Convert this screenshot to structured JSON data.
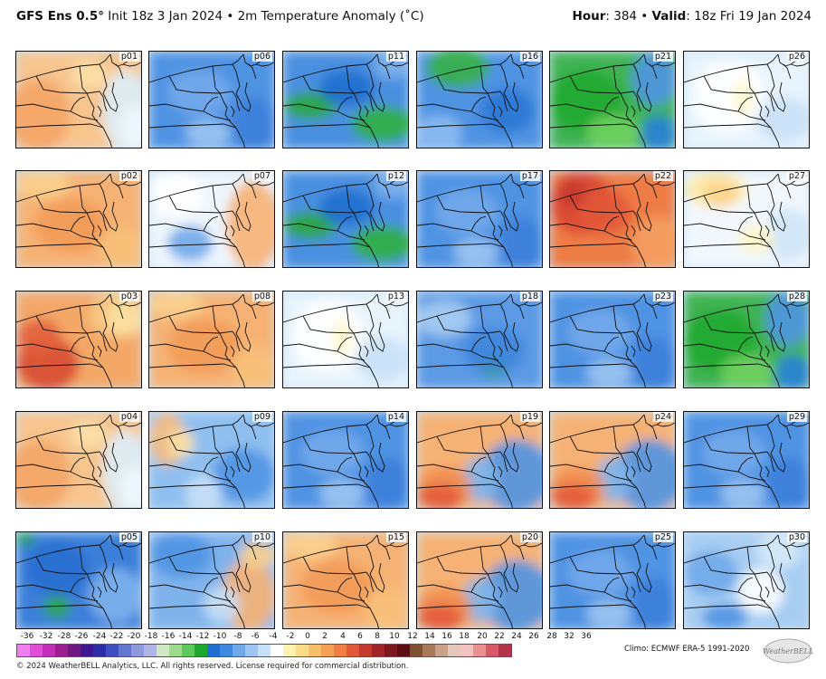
{
  "header": {
    "model": "GFS Ens 0.5",
    "degree": "°",
    "init": " Init 18z 3 Jan 2024 • 2m Temperature Anomaly (˚C)",
    "hour_label": "Hour",
    "hour_value": ": 384 • ",
    "valid_label": "Valid",
    "valid_value": ": 18z Fri 19 Jan 2024"
  },
  "panels": [
    {
      "label": "p01",
      "theme": "orange-west-light-east"
    },
    {
      "label": "p06",
      "theme": "blue"
    },
    {
      "label": "p11",
      "theme": "blue-green"
    },
    {
      "label": "p16",
      "theme": "blue-green-north"
    },
    {
      "label": "p21",
      "theme": "green"
    },
    {
      "label": "p26",
      "theme": "light"
    },
    {
      "label": "p02",
      "theme": "orange"
    },
    {
      "label": "p07",
      "theme": "light-orange-east"
    },
    {
      "label": "p12",
      "theme": "blue-green"
    },
    {
      "label": "p17",
      "theme": "blue"
    },
    {
      "label": "p22",
      "theme": "red"
    },
    {
      "label": "p27",
      "theme": "light-yellow"
    },
    {
      "label": "p03",
      "theme": "red-south"
    },
    {
      "label": "p08",
      "theme": "orange"
    },
    {
      "label": "p13",
      "theme": "light"
    },
    {
      "label": "p18",
      "theme": "blue-green-south"
    },
    {
      "label": "p23",
      "theme": "blue"
    },
    {
      "label": "p28",
      "theme": "green"
    },
    {
      "label": "p04",
      "theme": "orange-west-light-east"
    },
    {
      "label": "p09",
      "theme": "blue-orange-west"
    },
    {
      "label": "p14",
      "theme": "blue"
    },
    {
      "label": "p19",
      "theme": "orange-blue"
    },
    {
      "label": "p24",
      "theme": "orange-blue"
    },
    {
      "label": "p29",
      "theme": "blue"
    },
    {
      "label": "p05",
      "theme": "deep-blue"
    },
    {
      "label": "p10",
      "theme": "blue-orange-east"
    },
    {
      "label": "p15",
      "theme": "orange"
    },
    {
      "label": "p20",
      "theme": "orange-blue"
    },
    {
      "label": "p25",
      "theme": "blue"
    },
    {
      "label": "p30",
      "theme": "light-blue"
    }
  ],
  "colorbar": {
    "ticks": [
      "-36",
      "-32",
      "-28",
      "-26",
      "-24",
      "-22",
      "-20",
      "-18",
      "-16",
      "-14",
      "-12",
      "-10",
      "-8",
      "-6",
      "-4",
      "-2",
      "0",
      "2",
      "4",
      "6",
      "8",
      "10",
      "12",
      "14",
      "16",
      "18",
      "20",
      "22",
      "24",
      "26",
      "28",
      "32",
      "36"
    ],
    "colors": [
      "#f07ef0",
      "#e04fd8",
      "#c42fb9",
      "#9b1f8f",
      "#6e1a82",
      "#3d1890",
      "#2b2ea8",
      "#3f4fc0",
      "#6677d0",
      "#8f98db",
      "#b0b5e6",
      "#cfe8c2",
      "#9fdb8c",
      "#5cc85a",
      "#1ea82e",
      "#1f6fd0",
      "#3f8ae0",
      "#6fa9ea",
      "#9cc6f1",
      "#c8e0f7",
      "#ffffff",
      "#fff2b0",
      "#fbdc86",
      "#f8be6a",
      "#f59f57",
      "#ef7d44",
      "#e2583a",
      "#c53a2e",
      "#a12528",
      "#7c1820",
      "#5b0f14",
      "#7e5030",
      "#a8785a",
      "#c8a28a",
      "#e3c7bb",
      "#f3c3c3",
      "#ea9090",
      "#d85a6a",
      "#b4324a"
    ]
  },
  "footer": {
    "climo": "Climo: ECMWF ERA-5 1991-2020",
    "copyright": "© 2024 WeatherBELL Analytics, LLC. All rights reserved. License required for commercial distribution.",
    "logo_text": "WeatherBELL"
  }
}
